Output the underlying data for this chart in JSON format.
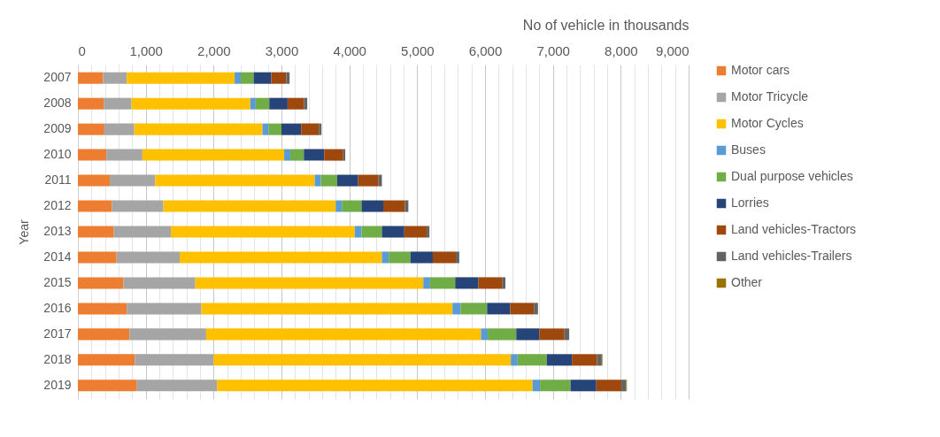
{
  "chart_data": {
    "type": "bar",
    "orientation": "horizontal",
    "stacked": true,
    "xlabel": "No of vehicle in thousands",
    "ylabel": "Year",
    "categories": [
      "2007",
      "2008",
      "2009",
      "2010",
      "2011",
      "2012",
      "2013",
      "2014",
      "2015",
      "2016",
      "2017",
      "2018",
      "2019"
    ],
    "xlim": [
      0,
      9000
    ],
    "xticks": [
      0,
      {
        "value": 200,
        "label": null
      },
      {
        "value": 400,
        "label": null
      },
      {
        "value": 600,
        "label": null
      },
      {
        "value": 800,
        "label": null
      },
      {
        "value": 1000,
        "label": "1,000"
      },
      {
        "value": 1200,
        "label": null
      },
      {
        "value": 1400,
        "label": null
      },
      {
        "value": 1600,
        "label": null
      },
      {
        "value": 1800,
        "label": null
      },
      {
        "value": 2000,
        "label": "2,000"
      },
      {
        "value": 2200,
        "label": null
      },
      {
        "value": 2400,
        "label": null
      },
      {
        "value": 2600,
        "label": null
      },
      {
        "value": 2800,
        "label": null
      },
      {
        "value": 3000,
        "label": "3,000"
      },
      {
        "value": 3200,
        "label": null
      },
      {
        "value": 3400,
        "label": null
      },
      {
        "value": 3600,
        "label": null
      },
      {
        "value": 3800,
        "label": null
      },
      {
        "value": 4000,
        "label": "4,000"
      },
      {
        "value": 4200,
        "label": null
      },
      {
        "value": 4400,
        "label": null
      },
      {
        "value": 4600,
        "label": null
      },
      {
        "value": 4800,
        "label": null
      },
      {
        "value": 5000,
        "label": "5,000"
      },
      {
        "value": 5200,
        "label": null
      },
      {
        "value": 5400,
        "label": null
      },
      {
        "value": 5600,
        "label": null
      },
      {
        "value": 5800,
        "label": null
      },
      {
        "value": 6000,
        "label": "6,000"
      },
      {
        "value": 6200,
        "label": null
      },
      {
        "value": 6400,
        "label": null
      },
      {
        "value": 6600,
        "label": null
      },
      {
        "value": 6800,
        "label": null
      },
      {
        "value": 7000,
        "label": "7,000"
      },
      {
        "value": 7200,
        "label": null
      },
      {
        "value": 7400,
        "label": null
      },
      {
        "value": 7600,
        "label": null
      },
      {
        "value": 7800,
        "label": null
      },
      {
        "value": 8000,
        "label": "8,000"
      },
      {
        "value": 8200,
        "label": null
      },
      {
        "value": 8400,
        "label": null
      },
      {
        "value": 8600,
        "label": null
      },
      {
        "value": 8800,
        "label": null
      },
      {
        "value": 9000,
        "label": "9,000"
      }
    ],
    "grid": "x",
    "legend": "right",
    "series": [
      {
        "name": "Motor cars",
        "color": "#ed7d31",
        "values": [
          370,
          380,
          390,
          420,
          470,
          500,
          530,
          570,
          670,
          720,
          760,
          840,
          870
        ]
      },
      {
        "name": "Motor Tricycle",
        "color": "#a5a5a5",
        "values": [
          350,
          410,
          440,
          530,
          670,
          760,
          840,
          930,
          1060,
          1100,
          1130,
          1160,
          1180
        ]
      },
      {
        "name": "Motor Cycles",
        "color": "#ffc000",
        "values": [
          1590,
          1750,
          1890,
          2090,
          2350,
          2540,
          2710,
          2980,
          3360,
          3700,
          4050,
          4380,
          4650
        ]
      },
      {
        "name": "Buses",
        "color": "#5b9bd5",
        "values": [
          90,
          80,
          90,
          90,
          90,
          90,
          100,
          100,
          100,
          120,
          100,
          100,
          110
        ]
      },
      {
        "name": "Dual purpose vehicles",
        "color": "#70ad47",
        "values": [
          190,
          200,
          190,
          200,
          240,
          290,
          300,
          320,
          370,
          390,
          420,
          430,
          450
        ]
      },
      {
        "name": "Lorries",
        "color": "#264478",
        "values": [
          260,
          270,
          290,
          300,
          310,
          320,
          330,
          330,
          340,
          340,
          340,
          370,
          380
        ]
      },
      {
        "name": "Land vehicles-Tractors",
        "color": "#9e480e",
        "values": [
          220,
          240,
          260,
          280,
          300,
          320,
          330,
          340,
          350,
          350,
          370,
          370,
          370
        ]
      },
      {
        "name": "Land vehicles-Trailers",
        "color": "#636363",
        "values": [
          50,
          50,
          40,
          30,
          50,
          50,
          40,
          50,
          50,
          60,
          70,
          70,
          70
        ]
      },
      {
        "name": "Other",
        "color": "#997300",
        "values": [
          null,
          null,
          null,
          null,
          null,
          null,
          null,
          null,
          null,
          null,
          null,
          10,
          10
        ]
      }
    ]
  }
}
